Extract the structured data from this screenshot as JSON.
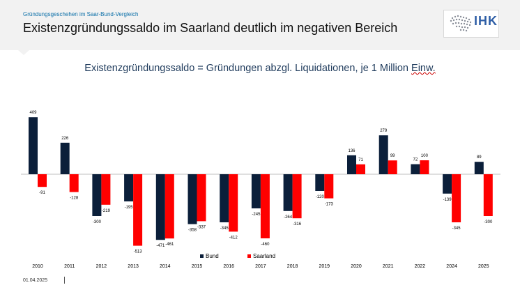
{
  "header": {
    "kicker": "Gründungsgeschehen im Saar-Bund-Vergleich",
    "headline": "Existenzgründungssaldo im Saarland deutlich im negativen Bereich",
    "logo_text": "IHK"
  },
  "chart_data": {
    "type": "bar",
    "title_main": "Existenzgründungssaldo = Gründungen abzgl. Liquidationen, je 1 Million ",
    "title_tail": "Einw.",
    "categories": [
      "2010",
      "2011",
      "2012",
      "2013",
      "2014",
      "2015",
      "2016",
      "2017",
      "2018",
      "2019",
      "2020",
      "2021",
      "2022",
      "2024",
      "2025"
    ],
    "series": [
      {
        "name": "Bund",
        "color": "#0b1f3a",
        "values": [
          409,
          226,
          -300,
          -195,
          -471,
          -358,
          -345,
          -245,
          -264,
          -120,
          136,
          279,
          72,
          -139,
          89
        ]
      },
      {
        "name": "Saarland",
        "color": "#ff0000",
        "values": [
          -91,
          -128,
          -219,
          -513,
          -461,
          -337,
          -412,
          -460,
          -316,
          -173,
          71,
          99,
          100,
          -345,
          -300
        ]
      }
    ],
    "labels": {
      "Bund": [
        "409",
        "226",
        "-300",
        "-195",
        "-471",
        "-358",
        "-345",
        "-245",
        "-264",
        "-120",
        "136",
        "279",
        "72",
        "-139",
        "89"
      ],
      "Saarland": [
        "-91",
        "-128",
        "-219",
        "-513",
        "-461",
        "-337",
        "-412",
        "-460",
        "-316",
        "-173",
        "71",
        "99",
        "100",
        "-345",
        "-300"
      ]
    },
    "ylim": [
      -560,
      440
    ],
    "grid": false,
    "legend_position": "bottom-right"
  },
  "footer": {
    "date": "01.04.2025"
  }
}
